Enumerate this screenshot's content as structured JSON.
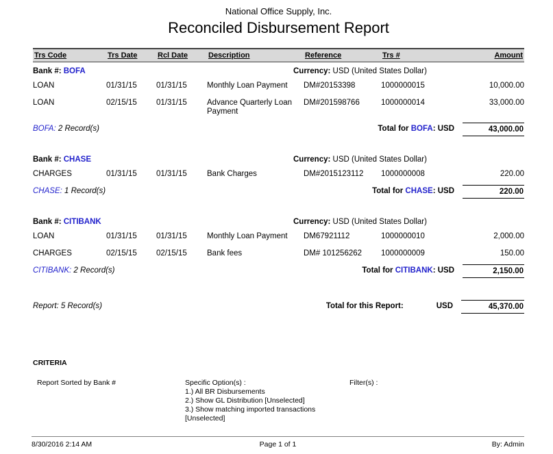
{
  "colors": {
    "bank_link_blue": "#2222cc"
  },
  "header": {
    "company": "National Office Supply, Inc.",
    "title": "Reconciled Disbursement Report"
  },
  "table": {
    "headers": [
      "Trs Code",
      "Trs Date",
      "Rcl Date",
      "Description",
      "Reference",
      "Trs #",
      "Amount"
    ]
  },
  "groups": [
    {
      "bank_label": "Bank #: ",
      "bank_code": "BOFA",
      "currency_label": "Currency: ",
      "currency_value": "USD (United States Dollar)",
      "rows": [
        {
          "trs_code": "LOAN",
          "trs_date": "01/31/15",
          "rcl_date": "01/31/15",
          "description": "Monthly Loan Payment",
          "reference": "DM#20153398",
          "trs_num": "1000000015",
          "amount": "10,000.00"
        },
        {
          "trs_code": "LOAN",
          "trs_date": "02/15/15",
          "rcl_date": "01/31/15",
          "description": "Advance Quarterly Loan Payment",
          "reference": "DM#201598766",
          "trs_num": "1000000014",
          "amount": "33,000.00"
        }
      ],
      "records_bank": "BOFA:",
      "records_count": " 2 Record(s)",
      "total_prefix": "Total for ",
      "total_bank": "BOFA",
      "total_suffix": ": USD",
      "total_amount": "43,000.00"
    },
    {
      "bank_label": "Bank #: ",
      "bank_code": "CHASE",
      "currency_label": "Currency: ",
      "currency_value": "USD (United States Dollar)",
      "rows": [
        {
          "trs_code": "CHARGES",
          "trs_date": "01/31/15",
          "rcl_date": "01/31/15",
          "description": "Bank Charges",
          "reference": "DM#2015123112",
          "trs_num": "1000000008",
          "amount": "220.00"
        }
      ],
      "records_bank": "CHASE:",
      "records_count": " 1 Record(s)",
      "total_prefix": "Total for ",
      "total_bank": "CHASE",
      "total_suffix": ": USD",
      "total_amount": "220.00"
    },
    {
      "bank_label": "Bank #: ",
      "bank_code": "CITIBANK",
      "currency_label": "Currency: ",
      "currency_value": "USD (United States Dollar)",
      "rows": [
        {
          "trs_code": "LOAN",
          "trs_date": "01/31/15",
          "rcl_date": "01/31/15",
          "description": "Monthly Loan Payment",
          "reference": "DM67921112",
          "trs_num": "1000000010",
          "amount": "2,000.00"
        },
        {
          "trs_code": "CHARGES",
          "trs_date": "02/15/15",
          "rcl_date": "02/15/15",
          "description": "Bank fees",
          "reference": "DM# 101256262",
          "trs_num": "1000000009",
          "amount": "150.00"
        }
      ],
      "records_bank": "CITIBANK:",
      "records_count": " 2 Record(s)",
      "total_prefix": "Total for ",
      "total_bank": "CITIBANK",
      "total_suffix": ": USD",
      "total_amount": "2,150.00"
    }
  ],
  "summary": {
    "records": "Report: 5 Record(s)",
    "total_label": "Total for this Report:",
    "currency": "USD",
    "total_amount": "45,370.00"
  },
  "criteria": {
    "heading": "CRITERIA",
    "sorted_by": "Report Sorted by Bank #",
    "options_label": "Specific Option(s) :",
    "options": [
      "1.) All BR Disbursements",
      "2.) Show GL Distribution [Unselected]",
      "3.) Show matching imported transactions [Unselected]"
    ],
    "filters_label": "Filter(s) :"
  },
  "footer": {
    "datetime": "8/30/2016 2:14 AM",
    "page": "Page 1 of 1",
    "by": "By: Admin"
  }
}
